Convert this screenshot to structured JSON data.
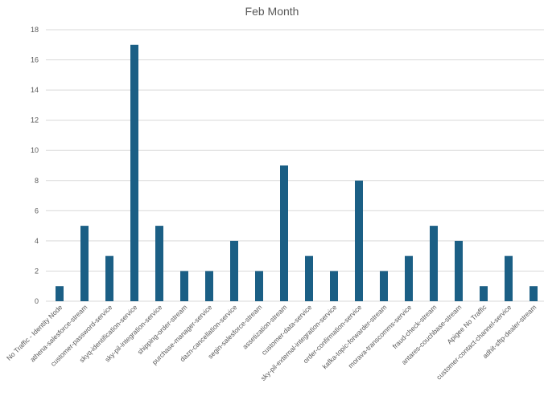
{
  "chart_data": {
    "type": "bar",
    "title": "Feb Month",
    "xlabel": "",
    "ylabel": "",
    "ylim": [
      0,
      18
    ],
    "yticks": [
      0,
      2,
      4,
      6,
      8,
      10,
      12,
      14,
      16,
      18
    ],
    "grid": true,
    "legend": "none",
    "bar_color": "#1b5f85",
    "categories": [
      "No Traffic - Identity Node",
      "athena-salesforce-stream",
      "customer-password-service",
      "skyq-identification-service",
      "sky-pil-integration-service",
      "shipping-order-stream",
      "purchase-manager-service",
      "dazn-cancellation-service",
      "segin-salesforce-stream",
      "assetization-stream",
      "customer-data-service",
      "sky-pil-external-integration-service",
      "order-confirmation-service",
      "kafka-topic-forwarder-stream",
      "morava-transcomms-service",
      "fraud-check-stream",
      "antares-couchbase-stream",
      "Apigee No Traffic",
      "customer-contact-channel-service",
      "adhit-sftp-dealer-stream"
    ],
    "values": [
      1,
      5,
      3,
      17,
      5,
      2,
      2,
      4,
      2,
      9,
      3,
      2,
      8,
      2,
      3,
      5,
      4,
      1,
      3,
      1
    ]
  }
}
